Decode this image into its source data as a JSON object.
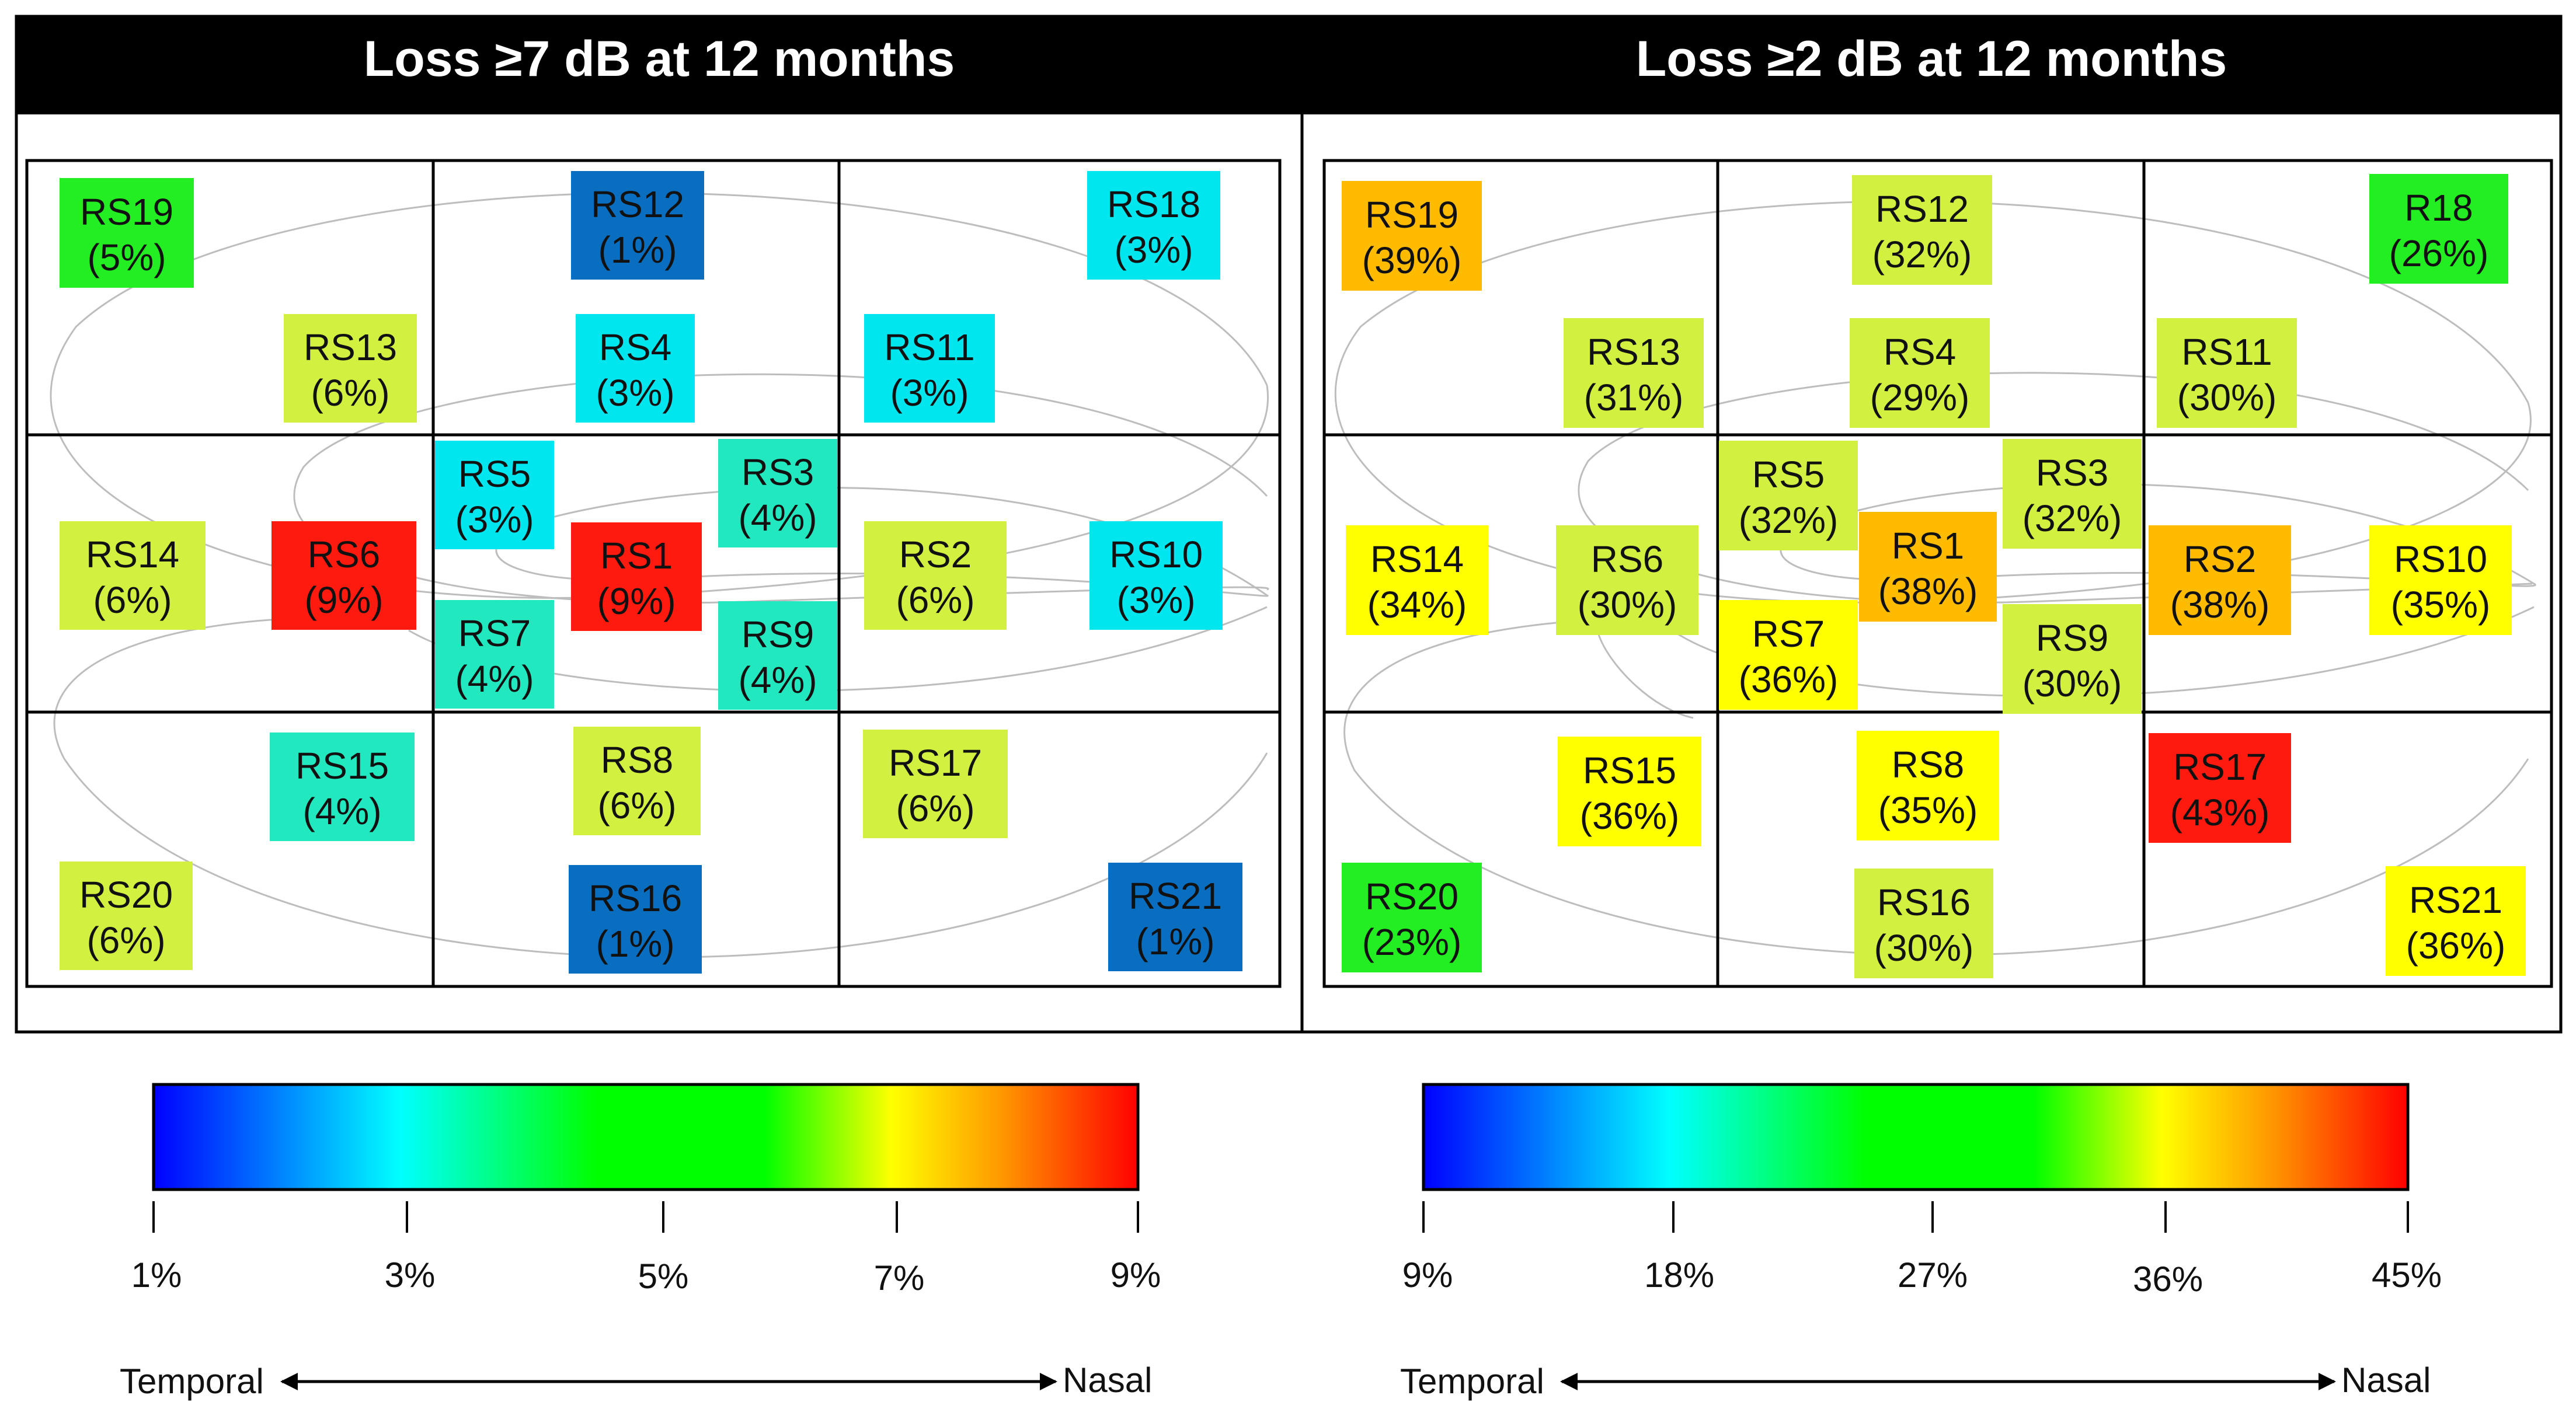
{
  "panels": [
    {
      "title": "Loss ≥7 dB at 12 months",
      "cells": [
        {
          "id": "RS19",
          "label": "RS19",
          "pct": "(5%)",
          "color": "#22ee22"
        },
        {
          "id": "RS12",
          "label": "RS12",
          "pct": "(1%)",
          "color": "#0a6ec0"
        },
        {
          "id": "RS18",
          "label": "RS18",
          "pct": "(3%)",
          "color": "#00e6ee"
        },
        {
          "id": "RS13",
          "label": "RS13",
          "pct": "(6%)",
          "color": "#d2f040"
        },
        {
          "id": "RS4",
          "label": "RS4",
          "pct": "(3%)",
          "color": "#00e6ee"
        },
        {
          "id": "RS11",
          "label": "RS11",
          "pct": "(3%)",
          "color": "#00e6ee"
        },
        {
          "id": "RS5",
          "label": "RS5",
          "pct": "(3%)",
          "color": "#00e6ee"
        },
        {
          "id": "RS3",
          "label": "RS3",
          "pct": "(4%)",
          "color": "#22e8c0"
        },
        {
          "id": "RS14",
          "label": "RS14",
          "pct": "(6%)",
          "color": "#d2f040"
        },
        {
          "id": "RS6",
          "label": "RS6",
          "pct": "(9%)",
          "color": "#ff1a10"
        },
        {
          "id": "RS1",
          "label": "RS1",
          "pct": "(9%)",
          "color": "#ff1a10"
        },
        {
          "id": "RS2",
          "label": "RS2",
          "pct": "(6%)",
          "color": "#d2f040"
        },
        {
          "id": "RS10",
          "label": "RS10",
          "pct": "(3%)",
          "color": "#00e6ee"
        },
        {
          "id": "RS7",
          "label": "RS7",
          "pct": "(4%)",
          "color": "#22e8c0"
        },
        {
          "id": "RS9",
          "label": "RS9",
          "pct": "(4%)",
          "color": "#22e8c0"
        },
        {
          "id": "RS15",
          "label": "RS15",
          "pct": "(4%)",
          "color": "#22e8c0"
        },
        {
          "id": "RS8",
          "label": "RS8",
          "pct": "(6%)",
          "color": "#d2f040"
        },
        {
          "id": "RS17",
          "label": "RS17",
          "pct": "(6%)",
          "color": "#d2f040"
        },
        {
          "id": "RS20",
          "label": "RS20",
          "pct": "(6%)",
          "color": "#d2f040"
        },
        {
          "id": "RS16",
          "label": "RS16",
          "pct": "(1%)",
          "color": "#0a6ec0"
        },
        {
          "id": "RS21",
          "label": "RS21",
          "pct": "(1%)",
          "color": "#0a6ec0"
        }
      ],
      "scale": {
        "ticks": [
          "1%",
          "3%",
          "5%",
          "7%",
          "9%"
        ],
        "left": "Temporal",
        "right": "Nasal"
      }
    },
    {
      "title": "Loss ≥2 dB at 12 months",
      "cells": [
        {
          "id": "RS19",
          "label": "RS19",
          "pct": "(39%)",
          "color": "#ffbb00"
        },
        {
          "id": "RS12",
          "label": "RS12",
          "pct": "(32%)",
          "color": "#d2f040"
        },
        {
          "id": "R18",
          "label": "R18",
          "pct": "(26%)",
          "color": "#22ee22"
        },
        {
          "id": "RS13",
          "label": "RS13",
          "pct": "(31%)",
          "color": "#d2f040"
        },
        {
          "id": "RS4",
          "label": "RS4",
          "pct": "(29%)",
          "color": "#d2f040"
        },
        {
          "id": "RS11",
          "label": "RS11",
          "pct": "(30%)",
          "color": "#d2f040"
        },
        {
          "id": "RS5",
          "label": "RS5",
          "pct": "(32%)",
          "color": "#d2f040"
        },
        {
          "id": "RS3",
          "label": "RS3",
          "pct": "(32%)",
          "color": "#d2f040"
        },
        {
          "id": "RS14",
          "label": "RS14",
          "pct": "(34%)",
          "color": "#ffff00"
        },
        {
          "id": "RS6",
          "label": "RS6",
          "pct": "(30%)",
          "color": "#d2f040"
        },
        {
          "id": "RS1",
          "label": "RS1",
          "pct": "(38%)",
          "color": "#ffbb00"
        },
        {
          "id": "RS2",
          "label": "RS2",
          "pct": "(38%)",
          "color": "#ffbb00"
        },
        {
          "id": "RS10",
          "label": "RS10",
          "pct": "(35%)",
          "color": "#ffff00"
        },
        {
          "id": "RS7",
          "label": "RS7",
          "pct": "(36%)",
          "color": "#ffff00"
        },
        {
          "id": "RS9",
          "label": "RS9",
          "pct": "(30%)",
          "color": "#d2f040"
        },
        {
          "id": "RS15",
          "label": "RS15",
          "pct": "(36%)",
          "color": "#ffff00"
        },
        {
          "id": "RS8",
          "label": "RS8",
          "pct": "(35%)",
          "color": "#ffff00"
        },
        {
          "id": "RS17",
          "label": "RS17",
          "pct": "(43%)",
          "color": "#ff1a10"
        },
        {
          "id": "RS20",
          "label": "RS20",
          "pct": "(23%)",
          "color": "#22ee22"
        },
        {
          "id": "RS16",
          "label": "RS16",
          "pct": "(30%)",
          "color": "#d2f040"
        },
        {
          "id": "RS21",
          "label": "RS21",
          "pct": "(36%)",
          "color": "#ffff00"
        }
      ],
      "scale": {
        "ticks": [
          "9%",
          "18%",
          "27%",
          "36%",
          "45%"
        ],
        "left": "Temporal",
        "right": "Nasal"
      }
    }
  ]
}
